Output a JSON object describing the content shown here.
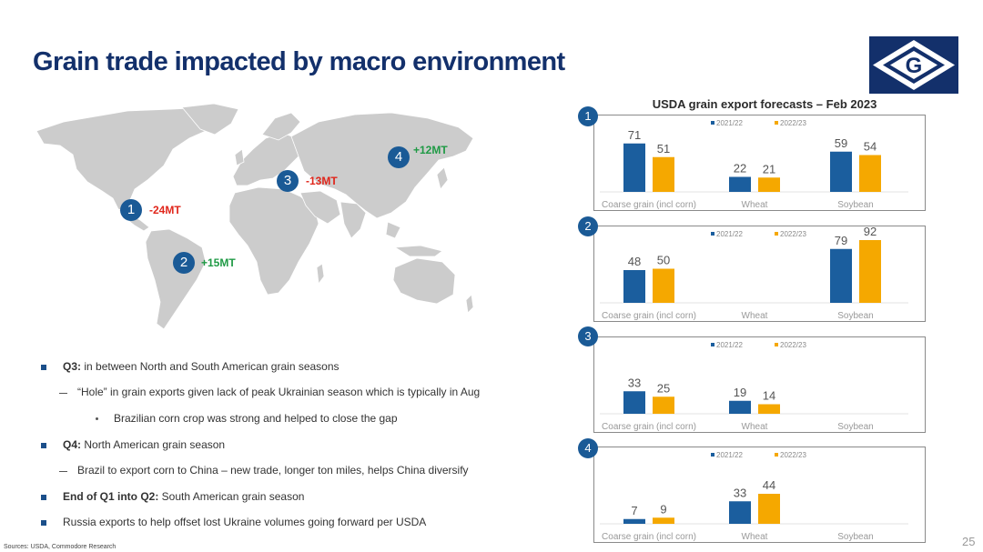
{
  "title": "Grain trade impacted by macro environment",
  "logo_letter": "G",
  "map": {
    "markers": [
      {
        "num": "1",
        "delta": "-24MT",
        "trend": "neg"
      },
      {
        "num": "2",
        "delta": "+15MT",
        "trend": "pos"
      },
      {
        "num": "3",
        "delta": "-13MT",
        "trend": "neg"
      },
      {
        "num": "4",
        "delta": "+12MT",
        "trend": "pos"
      }
    ]
  },
  "bullets": [
    {
      "bold": "Q3:",
      "text": " in between North and South American grain seasons"
    },
    {
      "bold": "",
      "text": "“Hole” in grain exports given lack of peak Ukrainian season which is typically in Aug"
    },
    {
      "bold": "",
      "text": "Brazilian corn crop was strong and helped to close the gap"
    },
    {
      "bold": "Q4:",
      "text": " North American grain season"
    },
    {
      "bold": "",
      "text": "Brazil to export corn to China – new trade, longer ton miles, helps China diversify"
    },
    {
      "bold": "End of Q1 into Q2:",
      "text": " South American grain season"
    },
    {
      "bold": "",
      "text": "Russia exports to help offset lost Ukraine volumes going forward per USDA"
    }
  ],
  "sources": "Sources: USDA, Commodore Research",
  "page_number": "25",
  "colors": {
    "navy": "#13306b",
    "series_2021": "#1b5e9e",
    "series_2022": "#f5a800",
    "neg": "#e0261b",
    "pos": "#1f9a45"
  },
  "chart_data": {
    "type": "bar",
    "title": "USDA grain export forecasts – Feb 2023",
    "categories": [
      "Coarse grain (incl corn)",
      "Wheat",
      "Soybean"
    ],
    "legend": [
      "2021/22",
      "2022/23"
    ],
    "legend_position": "top-right",
    "panels": [
      {
        "num": "1",
        "series": [
          {
            "name": "2021/22",
            "values": [
              71,
              22,
              59
            ]
          },
          {
            "name": "2022/23",
            "values": [
              51,
              21,
              54
            ]
          }
        ]
      },
      {
        "num": "2",
        "series": [
          {
            "name": "2021/22",
            "values": [
              48,
              null,
              79
            ]
          },
          {
            "name": "2022/23",
            "values": [
              50,
              null,
              92
            ]
          }
        ]
      },
      {
        "num": "3",
        "series": [
          {
            "name": "2021/22",
            "values": [
              33,
              19,
              null
            ]
          },
          {
            "name": "2022/23",
            "values": [
              25,
              14,
              null
            ]
          }
        ]
      },
      {
        "num": "4",
        "series": [
          {
            "name": "2021/22",
            "values": [
              7,
              33,
              null
            ]
          },
          {
            "name": "2022/23",
            "values": [
              9,
              44,
              null
            ]
          }
        ]
      }
    ]
  }
}
